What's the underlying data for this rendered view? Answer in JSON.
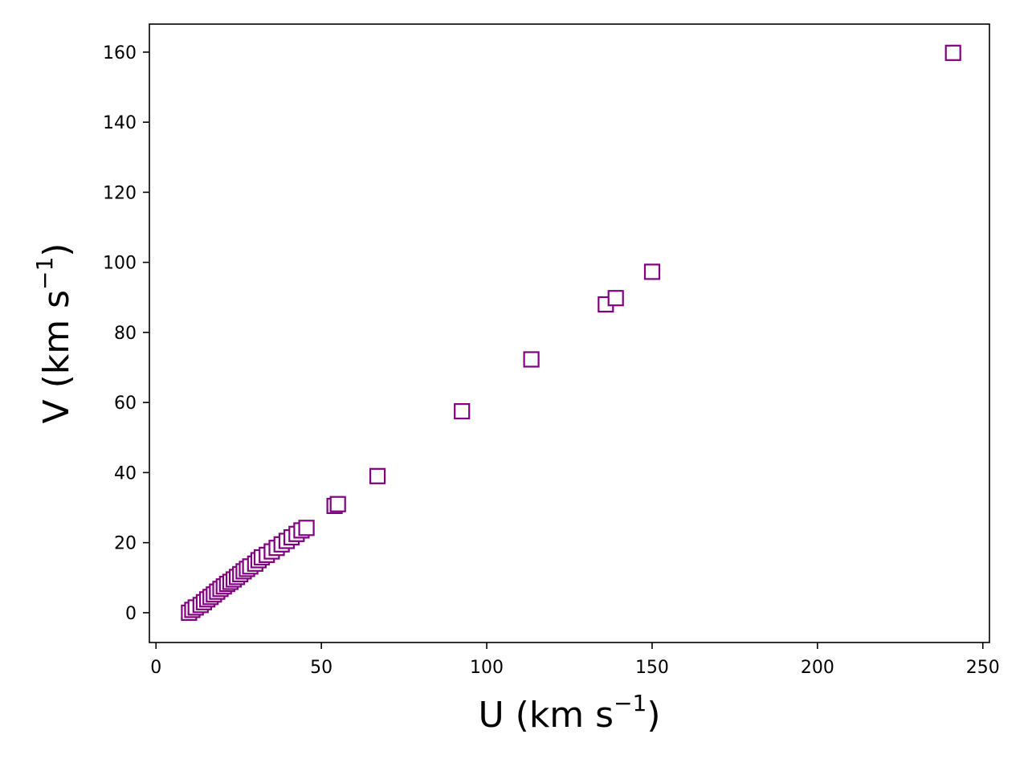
{
  "chart_data": {
    "type": "scatter",
    "title": "",
    "xlabel": "U (km s",
    "ylabel": "V (km s",
    "label_superscript": "−1",
    "label_close": ")",
    "xlim": [
      -2,
      252
    ],
    "ylim": [
      -8.5,
      168
    ],
    "xticks": [
      0,
      50,
      100,
      150,
      200,
      250
    ],
    "yticks": [
      0,
      20,
      40,
      60,
      80,
      100,
      120,
      140,
      160
    ],
    "grid": false,
    "marker": "open-square",
    "colors": {
      "marker": "#800080",
      "axes": "#000000",
      "background": "#ffffff"
    },
    "points": [
      {
        "x": 10,
        "y": 0
      },
      {
        "x": 11,
        "y": 0.8
      },
      {
        "x": 12,
        "y": 1.5
      },
      {
        "x": 13.5,
        "y": 2.2
      },
      {
        "x": 14.5,
        "y": 3
      },
      {
        "x": 15.5,
        "y": 3.8
      },
      {
        "x": 16.5,
        "y": 4.5
      },
      {
        "x": 17.5,
        "y": 5.2
      },
      {
        "x": 18.5,
        "y": 6
      },
      {
        "x": 19.5,
        "y": 6.8
      },
      {
        "x": 20.5,
        "y": 7.5
      },
      {
        "x": 21.5,
        "y": 8.2
      },
      {
        "x": 22.5,
        "y": 8.8
      },
      {
        "x": 23.5,
        "y": 9.5
      },
      {
        "x": 24.5,
        "y": 10.2
      },
      {
        "x": 25.5,
        "y": 11
      },
      {
        "x": 26.5,
        "y": 11.8
      },
      {
        "x": 27.5,
        "y": 12.5
      },
      {
        "x": 28.5,
        "y": 13.2
      },
      {
        "x": 30,
        "y": 14
      },
      {
        "x": 31,
        "y": 15
      },
      {
        "x": 32,
        "y": 15.8
      },
      {
        "x": 33.5,
        "y": 16.5
      },
      {
        "x": 35,
        "y": 17.5
      },
      {
        "x": 36.5,
        "y": 18.5
      },
      {
        "x": 38,
        "y": 19.5
      },
      {
        "x": 39.5,
        "y": 20.5
      },
      {
        "x": 41,
        "y": 21.5
      },
      {
        "x": 42.5,
        "y": 22.5
      },
      {
        "x": 44,
        "y": 23.5
      },
      {
        "x": 45.5,
        "y": 24.2
      },
      {
        "x": 54,
        "y": 30.5
      },
      {
        "x": 55,
        "y": 31
      },
      {
        "x": 67,
        "y": 39
      },
      {
        "x": 92.5,
        "y": 57.5
      },
      {
        "x": 113.5,
        "y": 72.3
      },
      {
        "x": 136,
        "y": 88
      },
      {
        "x": 139,
        "y": 89.8
      },
      {
        "x": 150,
        "y": 97.3
      },
      {
        "x": 241,
        "y": 159.8
      }
    ]
  }
}
